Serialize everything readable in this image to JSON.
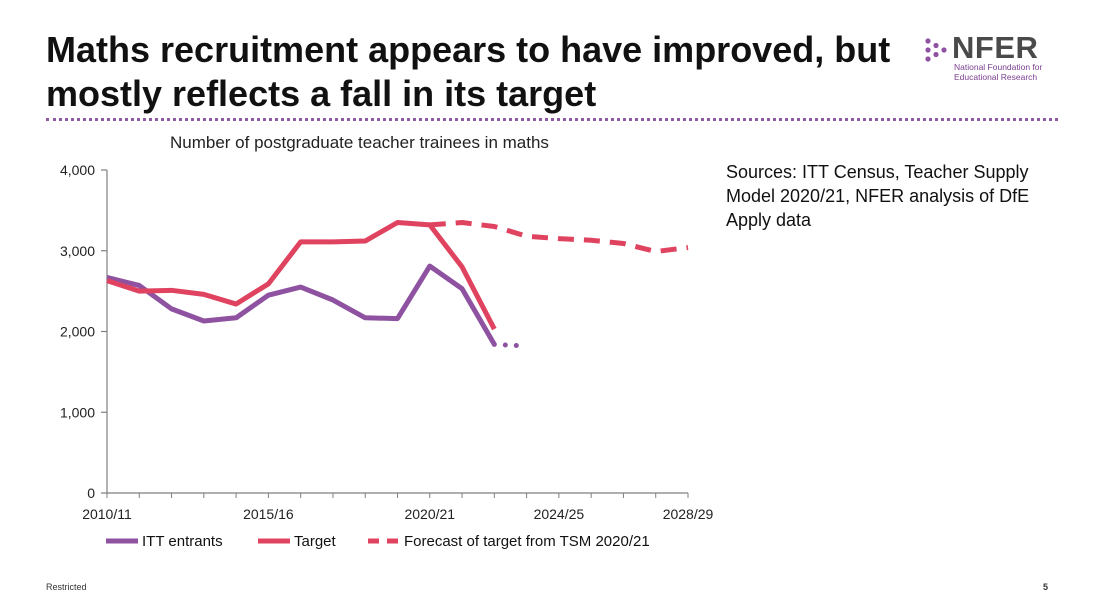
{
  "slide": {
    "title": "Maths recruitment appears to have improved, but mostly reflects a fall in its target",
    "logo_name": "NFER",
    "logo_subtitle_1": "National Foundation for",
    "logo_subtitle_2": "Educational Research",
    "sources": "Sources: ITT Census, Teacher Supply Model 2020/21, NFER analysis of DfE Apply data",
    "footer_left": "Restricted",
    "page_number": "5"
  },
  "colors": {
    "itt_entrants": "#8e52a1",
    "target": "#e0435f",
    "forecast": "#e0435f",
    "axis": "#7f7f7f",
    "divider": "#8e5aa3"
  },
  "chart_data": {
    "type": "line",
    "title": "Number of postgraduate teacher trainees in maths",
    "xlabel": "",
    "ylabel": "",
    "ylim": [
      0,
      4000
    ],
    "yticks": [
      0,
      1000,
      2000,
      3000,
      4000
    ],
    "ytick_labels": [
      "0",
      "1,000",
      "2,000",
      "3,000",
      "4,000"
    ],
    "x": [
      "2010/11",
      "2011/12",
      "2012/13",
      "2013/14",
      "2014/15",
      "2015/16",
      "2016/17",
      "2017/18",
      "2018/19",
      "2019/20",
      "2020/21",
      "2021/22",
      "2022/23",
      "2023/24",
      "2024/25",
      "2025/26",
      "2026/27",
      "2027/28",
      "2028/29"
    ],
    "xtick_labels": [
      "2010/11",
      "2015/16",
      "2020/21",
      "2024/25",
      "2028/29"
    ],
    "xtick_indices": [
      0,
      5,
      10,
      14,
      18
    ],
    "legend_position": "bottom",
    "grid": false,
    "series": [
      {
        "name": "ITT entrants",
        "style": "solid",
        "values": [
          2670,
          2570,
          2280,
          2130,
          2170,
          2450,
          2550,
          2390,
          2170,
          2160,
          2810,
          2530,
          1840,
          null,
          null,
          null,
          null,
          null,
          null
        ]
      },
      {
        "name": "",
        "style": "dotted",
        "legend": false,
        "values": [
          null,
          null,
          null,
          null,
          null,
          null,
          null,
          null,
          null,
          null,
          null,
          null,
          1840,
          1820,
          null,
          null,
          null,
          null,
          null
        ]
      },
      {
        "name": "Target",
        "style": "solid",
        "values": [
          2630,
          2500,
          2510,
          2460,
          2340,
          2590,
          3110,
          3110,
          3120,
          3350,
          3320,
          2800,
          2030,
          null,
          null,
          null,
          null,
          null,
          null
        ]
      },
      {
        "name": "Forecast of target from TSM 2020/21",
        "style": "dashed",
        "values": [
          null,
          null,
          null,
          null,
          null,
          null,
          null,
          null,
          null,
          null,
          3320,
          3350,
          3300,
          3180,
          3150,
          3130,
          3090,
          2990,
          3040
        ]
      }
    ]
  }
}
